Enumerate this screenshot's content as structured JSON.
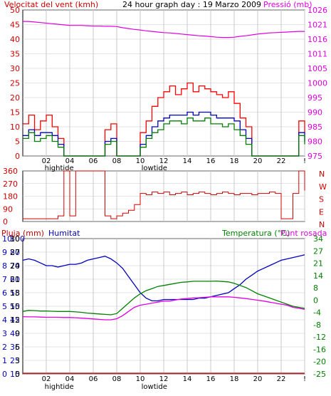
{
  "header": {
    "title_left": "Velocitat del vent (kmh)",
    "title_center": "24 hour graph day : 19 Marzo 2009",
    "title_right": "Pressió (mb)"
  },
  "colors": {
    "wind_gust": "#ff0000",
    "wind_avg": "#0000c0",
    "wind_speed": "#008000",
    "pressure": "#e000e0",
    "direction": "#d00000",
    "humidity": "#0000c0",
    "temperature": "#008000",
    "dewpoint": "#e000e0",
    "rain": "#d00000",
    "grid": "#c8c8c8",
    "frame": "#000000"
  },
  "panels": {
    "wind": {
      "tide_labels": [
        "hightide",
        "lowtide"
      ]
    },
    "direction": {
      "compass_labels": [
        "N",
        "W",
        "S",
        "E",
        "N"
      ]
    },
    "bottom": {
      "label_rain": "Pluja (mm)",
      "label_humidity": "Humitat",
      "label_temperature": "Temperatura (°C)",
      "label_dewpoint": "Punt rosada",
      "tide_labels": [
        "hightide",
        "lowtide"
      ]
    }
  },
  "chart_data": [
    {
      "type": "line",
      "id": "wind",
      "title": "24 hour graph day : 19 Marzo 2009",
      "ylabel": "Velocitat del vent (kmh)",
      "y2label": "Pressió (mb)",
      "ylim": [
        0,
        50
      ],
      "y2lim": [
        975,
        1026
      ],
      "yticks": [
        0,
        5,
        10,
        15,
        20,
        25,
        30,
        35,
        40,
        45,
        50
      ],
      "y2ticks": [
        975,
        980,
        985,
        990,
        995,
        1000,
        1005,
        1011,
        1016,
        1021,
        1026
      ],
      "xticks": [
        "02",
        "04",
        "06",
        "08",
        "10",
        "12",
        "14",
        "16",
        "18",
        "20",
        "22",
        "!"
      ],
      "x_hours": [
        0,
        0.5,
        1,
        1.5,
        2,
        2.5,
        3,
        3.5,
        4,
        4.5,
        5,
        5.5,
        6,
        6.5,
        7,
        7.5,
        8,
        8.5,
        9,
        9.5,
        10,
        10.5,
        11,
        11.5,
        12,
        12.5,
        13,
        13.5,
        14,
        14.5,
        15,
        15.5,
        16,
        16.5,
        17,
        17.5,
        18,
        18.5,
        19,
        19.5,
        20,
        20.5,
        21,
        21.5,
        22,
        22.5,
        23,
        23.5,
        24
      ],
      "series": [
        {
          "name": "gust",
          "values": [
            11,
            14,
            9,
            12,
            14,
            10,
            6,
            0,
            0,
            0,
            0,
            0,
            0,
            0,
            9,
            11,
            0,
            0,
            0,
            0,
            8,
            12,
            17,
            20,
            22,
            24,
            21,
            23,
            25,
            22,
            24,
            23,
            22,
            21,
            20,
            22,
            18,
            13,
            10,
            0,
            0,
            0,
            0,
            0,
            0,
            0,
            0,
            12,
            8
          ]
        },
        {
          "name": "average",
          "values": [
            7,
            9,
            7,
            8,
            8,
            7,
            4,
            0,
            0,
            0,
            0,
            0,
            0,
            0,
            5,
            6,
            0,
            0,
            0,
            0,
            4,
            7,
            10,
            12,
            13,
            14,
            14,
            14,
            15,
            14,
            15,
            15,
            14,
            13,
            13,
            13,
            12,
            9,
            6,
            0,
            0,
            0,
            0,
            0,
            0,
            0,
            0,
            8,
            5
          ]
        },
        {
          "name": "speed",
          "values": [
            6,
            8,
            5,
            6,
            7,
            5,
            3,
            0,
            0,
            0,
            0,
            0,
            0,
            0,
            4,
            5,
            0,
            0,
            0,
            0,
            3,
            6,
            8,
            9,
            11,
            12,
            12,
            11,
            13,
            12,
            12,
            13,
            11,
            11,
            10,
            11,
            9,
            7,
            4,
            0,
            0,
            0,
            0,
            0,
            0,
            0,
            0,
            7,
            4
          ]
        },
        {
          "name": "pressure",
          "axis": "right",
          "values": [
            1022,
            1022,
            1021.8,
            1021.6,
            1021.4,
            1021.2,
            1021,
            1020.8,
            1020.6,
            1020.6,
            1020.6,
            1020.5,
            1020.4,
            1020.4,
            1020.3,
            1020.3,
            1020.2,
            1019.8,
            1019.5,
            1019.2,
            1019,
            1018.7,
            1018.5,
            1018.3,
            1018.1,
            1018,
            1017.8,
            1017.6,
            1017.4,
            1017.2,
            1017,
            1016.9,
            1016.7,
            1016.5,
            1016.4,
            1016.4,
            1016.5,
            1016.8,
            1017,
            1017.3,
            1017.6,
            1017.8,
            1018,
            1018.1,
            1018.2,
            1018.3,
            1018.4,
            1018.5,
            1018.5
          ]
        }
      ]
    },
    {
      "type": "line",
      "id": "direction",
      "ylim": [
        0,
        360
      ],
      "yticks": [
        0,
        90,
        180,
        270,
        360
      ],
      "y2ticks": [
        "N",
        "W",
        "S",
        "E",
        "N"
      ],
      "x_hours": [
        0,
        0.5,
        1,
        1.5,
        2,
        2.5,
        3,
        3.5,
        4,
        4.5,
        5,
        5.5,
        6,
        6.5,
        7,
        7.5,
        8,
        8.5,
        9,
        9.5,
        10,
        10.5,
        11,
        11.5,
        12,
        12.5,
        13,
        13.5,
        14,
        14.5,
        15,
        15.5,
        16,
        16.5,
        17,
        17.5,
        18,
        18.5,
        19,
        19.5,
        20,
        20.5,
        21,
        21.5,
        22,
        22.5,
        23,
        23.5,
        24
      ],
      "series": [
        {
          "name": "direction",
          "values": [
            20,
            20,
            20,
            20,
            20,
            20,
            40,
            360,
            40,
            360,
            360,
            360,
            360,
            360,
            40,
            20,
            40,
            60,
            80,
            120,
            200,
            190,
            210,
            200,
            210,
            190,
            200,
            210,
            190,
            200,
            210,
            200,
            190,
            200,
            210,
            200,
            190,
            200,
            200,
            190,
            200,
            200,
            210,
            200,
            20,
            20,
            200,
            360,
            220
          ]
        }
      ]
    },
    {
      "type": "line",
      "id": "bottom",
      "xticks": [
        "02",
        "04",
        "06",
        "08",
        "10",
        "12",
        "14",
        "16",
        "18",
        "20",
        "22",
        "!"
      ],
      "rain_ticks": [
        0,
        1,
        2,
        3,
        4,
        5,
        6,
        7,
        8,
        9,
        10
      ],
      "humidity_ticks": [
        15,
        25,
        35,
        40,
        45,
        50,
        55,
        60,
        70,
        80,
        100
      ],
      "temp_ticks_left": [
        0,
        3,
        6,
        9,
        12,
        15,
        18,
        21,
        24,
        27,
        30
      ],
      "temp_ticks_right": [
        -25,
        -20,
        -16,
        -12,
        -8,
        -4,
        0,
        8,
        14,
        21,
        27,
        34
      ],
      "temp_axis_scale": [
        -25,
        40
      ],
      "x_hours": [
        0,
        0.5,
        1,
        1.5,
        2,
        2.5,
        3,
        3.5,
        4,
        4.5,
        5,
        5.5,
        6,
        6.5,
        7,
        7.5,
        8,
        8.5,
        9,
        9.5,
        10,
        10.5,
        11,
        11.5,
        12,
        12.5,
        13,
        13.5,
        14,
        14.5,
        15,
        15.5,
        16,
        16.5,
        17,
        17.5,
        18,
        18.5,
        19,
        19.5,
        20,
        20.5,
        21,
        21.5,
        22,
        22.5,
        23,
        23.5,
        24
      ],
      "series": [
        {
          "name": "humidity",
          "axis": "humidity_scale",
          "values": [
            84,
            85,
            84,
            82,
            80,
            80,
            79,
            80,
            81,
            81,
            82,
            84,
            85,
            86,
            87,
            85,
            82,
            78,
            72,
            66,
            60,
            56,
            54,
            54,
            55,
            55,
            55,
            55,
            55,
            55,
            56,
            56,
            57,
            58,
            59,
            60,
            63,
            66,
            70,
            73,
            76,
            78,
            80,
            82,
            84,
            85,
            86,
            87,
            88
          ]
        },
        {
          "name": "temperature",
          "axis": "right",
          "values": [
            5,
            5.5,
            5.4,
            5.2,
            5.2,
            5.1,
            5,
            5,
            5,
            4.8,
            4.6,
            4.2,
            4,
            3.8,
            3.6,
            3.4,
            4,
            6.5,
            9,
            11.5,
            13.5,
            15,
            16,
            17,
            17.5,
            18,
            18.5,
            19,
            19.2,
            19.5,
            19.5,
            19.5,
            19.5,
            19.6,
            19.4,
            19.2,
            18.5,
            17.5,
            16.5,
            15,
            13.5,
            12.5,
            11.5,
            10.5,
            9.5,
            8.5,
            7.5,
            7,
            6.5
          ]
        },
        {
          "name": "dewpoint",
          "axis": "right",
          "values": [
            2.5,
            2.4,
            2.4,
            2.3,
            2.2,
            2.2,
            2.2,
            2.1,
            2.1,
            2.0,
            1.8,
            1.6,
            1.4,
            1.2,
            1,
            1,
            1.5,
            3,
            5,
            7,
            8,
            8.5,
            9,
            9.5,
            10,
            10,
            10.5,
            11,
            11.2,
            11.5,
            11.6,
            11.8,
            12,
            12,
            12,
            12,
            11.8,
            11.5,
            11.2,
            10.8,
            10.4,
            10,
            9.5,
            9,
            8.5,
            8,
            7,
            6.5,
            6
          ]
        },
        {
          "name": "rain",
          "axis": "left",
          "values": [
            0,
            0,
            0,
            0,
            0,
            0,
            0,
            0,
            0,
            0,
            0,
            0,
            0,
            0,
            0,
            0,
            0,
            0,
            0,
            0,
            0,
            0,
            0,
            0,
            0,
            0,
            0,
            0,
            0,
            0,
            0,
            0,
            0,
            0,
            0,
            0,
            0,
            0,
            0,
            0,
            0,
            0,
            0,
            0,
            0,
            0,
            0,
            0,
            0
          ]
        }
      ]
    }
  ]
}
